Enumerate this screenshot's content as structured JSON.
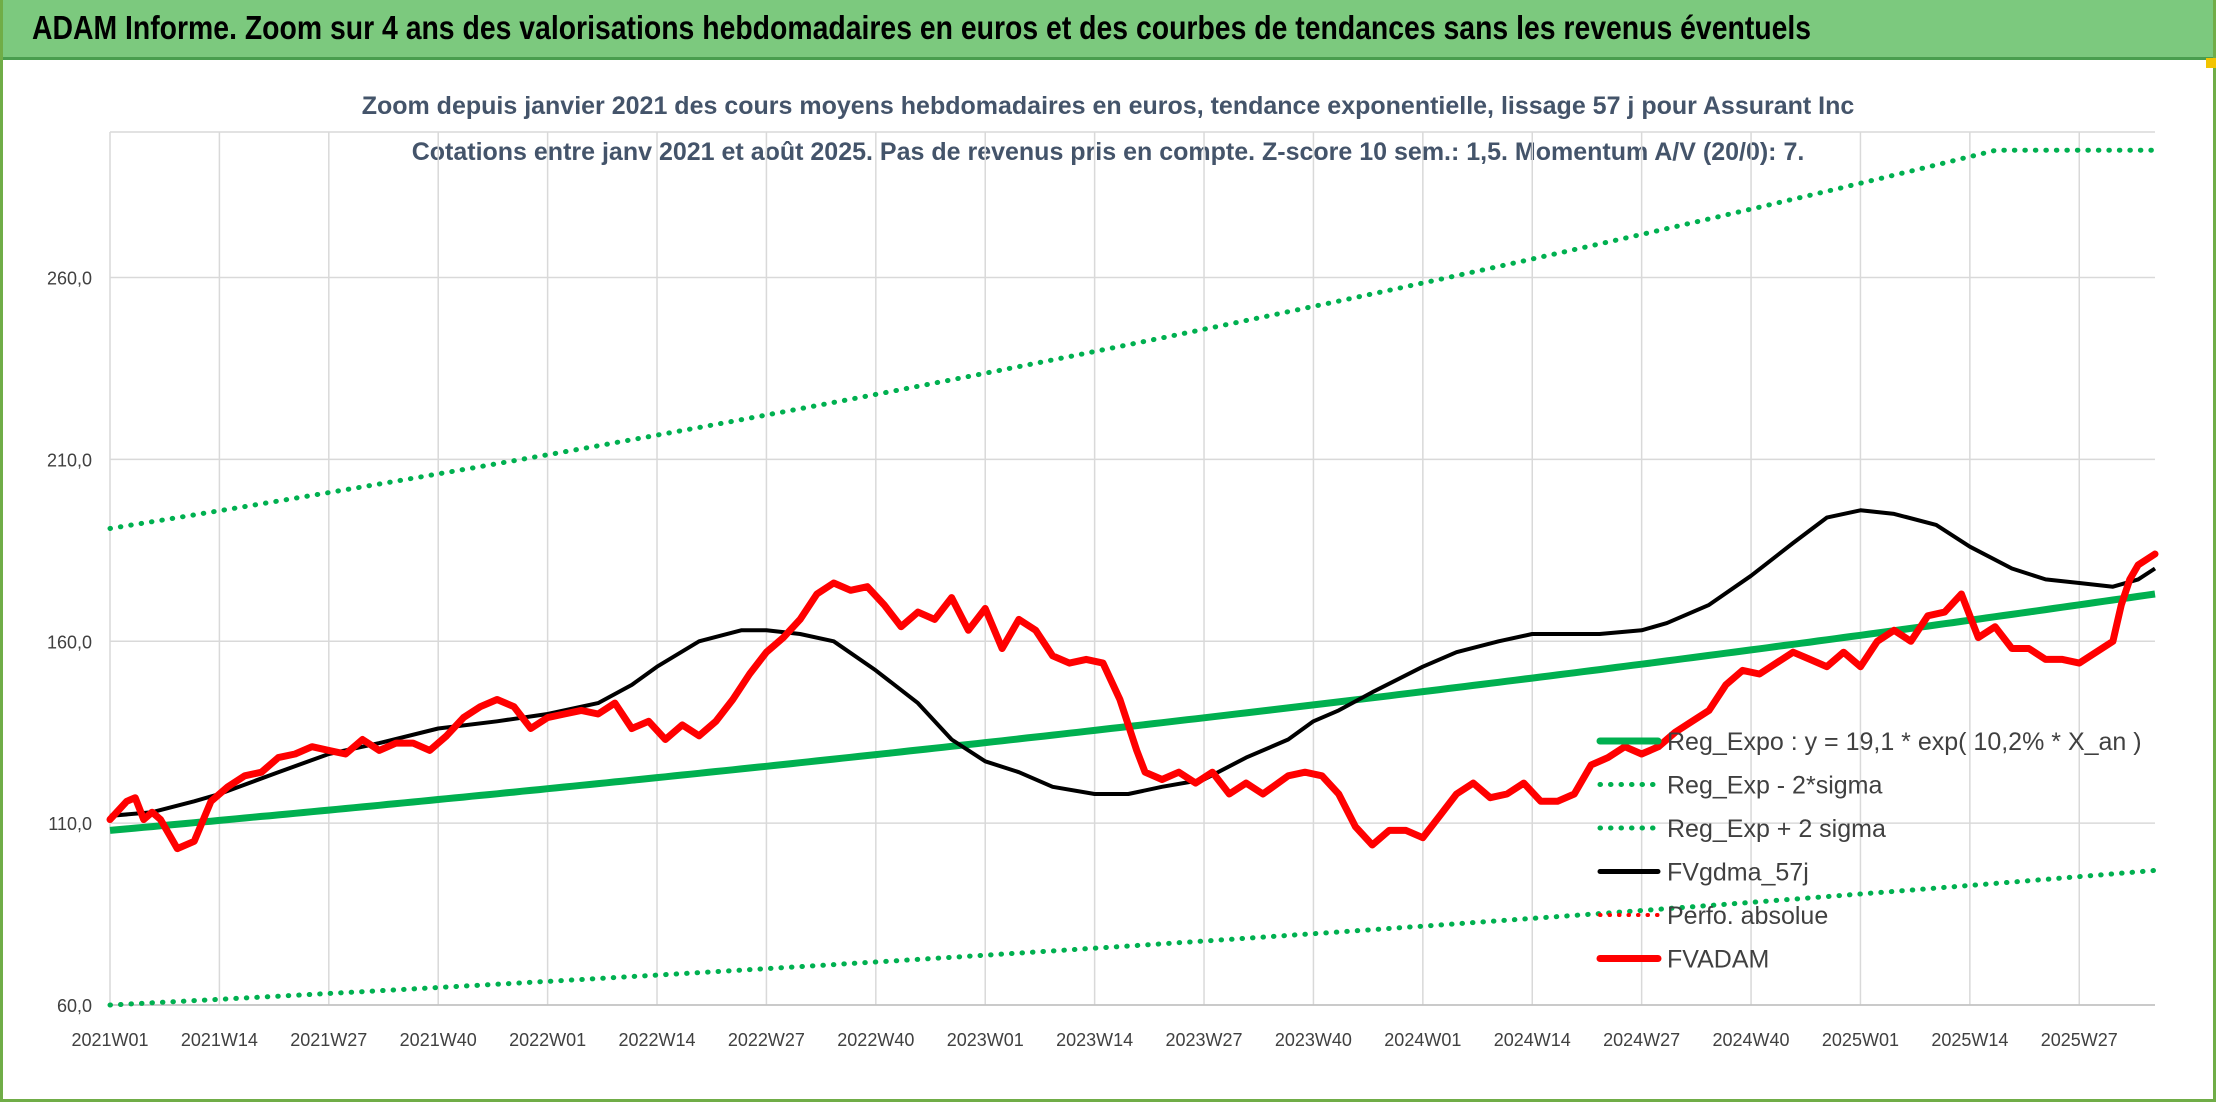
{
  "header": {
    "title": "ADAM Informe. Zoom sur 4 ans des valorisations hebdomadaires en euros et des courbes de tendances sans les revenus éventuels"
  },
  "chart_data": {
    "type": "line",
    "title_line1": "Zoom depuis janvier 2021 des cours moyens hebdomadaires en euros, tendance exponentielle, lissage 57 j pour Assurant Inc",
    "title_line2": "Cotations entre janv 2021 et août 2025. Pas de revenus pris en compte. Z-score 10 sem.: 1,5. Momentum A/V (20/0): 7.",
    "ylim": [
      60,
      300
    ],
    "yticks": [
      "60,0",
      "110,0",
      "160,0",
      "210,0",
      "260,0"
    ],
    "ytick_values": [
      60,
      110,
      160,
      210,
      260
    ],
    "xticks": [
      "2021W01",
      "2021W14",
      "2021W27",
      "2021W40",
      "2022W01",
      "2022W14",
      "2022W27",
      "2022W40",
      "2023W01",
      "2023W14",
      "2023W27",
      "2023W40",
      "2024W01",
      "2024W14",
      "2024W27",
      "2024W40",
      "2025W01",
      "2025W14",
      "2025W27"
    ],
    "xtick_index": [
      0,
      13,
      26,
      39,
      52,
      65,
      78,
      91,
      104,
      117,
      130,
      143,
      156,
      169,
      182,
      195,
      208,
      221,
      234
    ],
    "x_count": 244,
    "grid": "vertical",
    "legend_position": "bottom-right",
    "colors": {
      "expo": "#00b050",
      "band": "#00b050",
      "fvgdma": "#000000",
      "fvadam": "#ff0000",
      "perfo": "#ff0000"
    },
    "series": [
      {
        "key": "expo",
        "name": "Reg_Expo : y = 19,1 * exp( 10,2% *  X_an )",
        "style": "solid",
        "start": 108,
        "end": 173
      },
      {
        "key": "lower",
        "name": "Reg_Exp - 2*sigma",
        "style": "dotted",
        "start": 60,
        "end": 97
      },
      {
        "key": "upper",
        "name": "Reg_Exp + 2 sigma",
        "style": "dotted",
        "start": 191,
        "end": 306,
        "clip_at": 295
      },
      {
        "key": "fvgdma",
        "name": "FVgdma_57j",
        "style": "solid",
        "points": [
          [
            0,
            112
          ],
          [
            5,
            113
          ],
          [
            10,
            116
          ],
          [
            13,
            118
          ],
          [
            20,
            124
          ],
          [
            26,
            129
          ],
          [
            32,
            132
          ],
          [
            39,
            136
          ],
          [
            46,
            138
          ],
          [
            52,
            140
          ],
          [
            58,
            143
          ],
          [
            62,
            148
          ],
          [
            65,
            153
          ],
          [
            70,
            160
          ],
          [
            75,
            163
          ],
          [
            78,
            163
          ],
          [
            82,
            162
          ],
          [
            86,
            160
          ],
          [
            91,
            152
          ],
          [
            96,
            143
          ],
          [
            100,
            133
          ],
          [
            104,
            127
          ],
          [
            108,
            124
          ],
          [
            112,
            120
          ],
          [
            117,
            118
          ],
          [
            121,
            118
          ],
          [
            125,
            120
          ],
          [
            130,
            122
          ],
          [
            135,
            128
          ],
          [
            140,
            133
          ],
          [
            143,
            138
          ],
          [
            146,
            141
          ],
          [
            150,
            146
          ],
          [
            156,
            153
          ],
          [
            160,
            157
          ],
          [
            165,
            160
          ],
          [
            169,
            162
          ],
          [
            173,
            162
          ],
          [
            177,
            162
          ],
          [
            182,
            163
          ],
          [
            185,
            165
          ],
          [
            190,
            170
          ],
          [
            195,
            178
          ],
          [
            200,
            187
          ],
          [
            204,
            194
          ],
          [
            208,
            196
          ],
          [
            212,
            195
          ],
          [
            217,
            192
          ],
          [
            221,
            186
          ],
          [
            226,
            180
          ],
          [
            230,
            177
          ],
          [
            234,
            176
          ],
          [
            238,
            175
          ],
          [
            241,
            177
          ],
          [
            243,
            180
          ]
        ]
      },
      {
        "key": "perfo",
        "name": "Perfo. absolue",
        "style": "dotted"
      },
      {
        "key": "fvadam",
        "name": "FVADAM",
        "style": "solid",
        "points": [
          [
            0,
            111
          ],
          [
            2,
            116
          ],
          [
            3,
            117
          ],
          [
            4,
            111
          ],
          [
            5,
            113
          ],
          [
            6,
            111
          ],
          [
            7,
            107
          ],
          [
            8,
            103
          ],
          [
            10,
            105
          ],
          [
            12,
            116
          ],
          [
            14,
            120
          ],
          [
            16,
            123
          ],
          [
            18,
            124
          ],
          [
            20,
            128
          ],
          [
            22,
            129
          ],
          [
            24,
            131
          ],
          [
            26,
            130
          ],
          [
            28,
            129
          ],
          [
            30,
            133
          ],
          [
            32,
            130
          ],
          [
            34,
            132
          ],
          [
            36,
            132
          ],
          [
            38,
            130
          ],
          [
            40,
            134
          ],
          [
            42,
            139
          ],
          [
            44,
            142
          ],
          [
            46,
            144
          ],
          [
            48,
            142
          ],
          [
            50,
            136
          ],
          [
            52,
            139
          ],
          [
            54,
            140
          ],
          [
            56,
            141
          ],
          [
            58,
            140
          ],
          [
            60,
            143
          ],
          [
            62,
            136
          ],
          [
            64,
            138
          ],
          [
            66,
            133
          ],
          [
            68,
            137
          ],
          [
            70,
            134
          ],
          [
            72,
            138
          ],
          [
            74,
            144
          ],
          [
            76,
            151
          ],
          [
            78,
            157
          ],
          [
            80,
            161
          ],
          [
            82,
            166
          ],
          [
            84,
            173
          ],
          [
            86,
            176
          ],
          [
            88,
            174
          ],
          [
            90,
            175
          ],
          [
            92,
            170
          ],
          [
            94,
            164
          ],
          [
            96,
            168
          ],
          [
            98,
            166
          ],
          [
            100,
            172
          ],
          [
            102,
            163
          ],
          [
            104,
            169
          ],
          [
            106,
            158
          ],
          [
            108,
            166
          ],
          [
            110,
            163
          ],
          [
            112,
            156
          ],
          [
            114,
            154
          ],
          [
            116,
            155
          ],
          [
            118,
            154
          ],
          [
            120,
            144
          ],
          [
            122,
            130
          ],
          [
            123,
            124
          ],
          [
            125,
            122
          ],
          [
            127,
            124
          ],
          [
            129,
            121
          ],
          [
            131,
            124
          ],
          [
            133,
            118
          ],
          [
            135,
            121
          ],
          [
            137,
            118
          ],
          [
            140,
            123
          ],
          [
            142,
            124
          ],
          [
            144,
            123
          ],
          [
            146,
            118
          ],
          [
            148,
            109
          ],
          [
            150,
            104
          ],
          [
            152,
            108
          ],
          [
            154,
            108
          ],
          [
            156,
            106
          ],
          [
            158,
            112
          ],
          [
            160,
            118
          ],
          [
            162,
            121
          ],
          [
            164,
            117
          ],
          [
            166,
            118
          ],
          [
            168,
            121
          ],
          [
            170,
            116
          ],
          [
            172,
            116
          ],
          [
            174,
            118
          ],
          [
            176,
            126
          ],
          [
            178,
            128
          ],
          [
            180,
            131
          ],
          [
            182,
            129
          ],
          [
            184,
            131
          ],
          [
            186,
            135
          ],
          [
            188,
            138
          ],
          [
            190,
            141
          ],
          [
            192,
            148
          ],
          [
            194,
            152
          ],
          [
            196,
            151
          ],
          [
            198,
            154
          ],
          [
            200,
            157
          ],
          [
            202,
            155
          ],
          [
            204,
            153
          ],
          [
            206,
            157
          ],
          [
            208,
            153
          ],
          [
            210,
            160
          ],
          [
            212,
            163
          ],
          [
            214,
            160
          ],
          [
            216,
            167
          ],
          [
            218,
            168
          ],
          [
            220,
            173
          ],
          [
            222,
            161
          ],
          [
            224,
            164
          ],
          [
            226,
            158
          ],
          [
            228,
            158
          ],
          [
            230,
            155
          ],
          [
            232,
            155
          ],
          [
            234,
            154
          ],
          [
            236,
            157
          ],
          [
            238,
            160
          ],
          [
            239,
            170
          ],
          [
            240,
            177
          ],
          [
            241,
            181
          ],
          [
            243,
            184
          ]
        ]
      }
    ]
  }
}
